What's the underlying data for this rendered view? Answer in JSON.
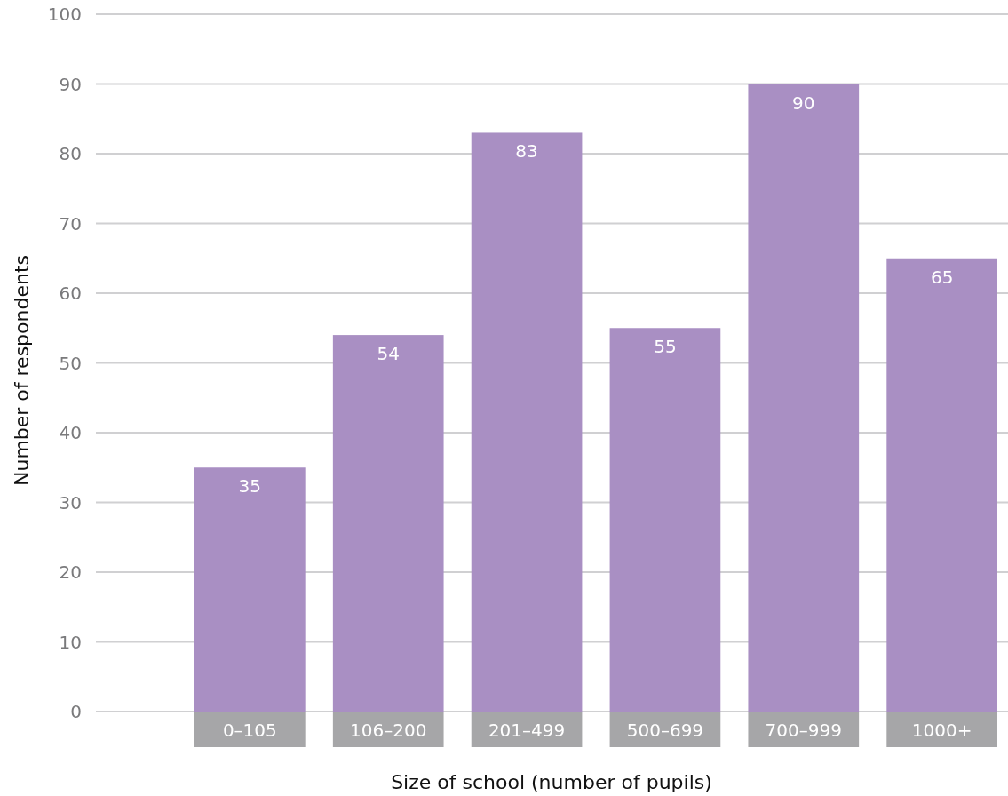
{
  "chart_data": {
    "type": "bar",
    "xlabel": "Size of school (number of pupils)",
    "ylabel": "Number of respondents",
    "categories": [
      "0–105",
      "106–200",
      "201–499",
      "500–699",
      "700–999",
      "1000+"
    ],
    "values": [
      35,
      54,
      83,
      55,
      90,
      65
    ],
    "color": "#a98fc3",
    "ylim": [
      0,
      100
    ],
    "yticks": [
      0,
      10,
      20,
      30,
      40,
      50,
      60,
      70,
      80,
      90,
      100
    ],
    "grid": "y",
    "data_labels": true
  }
}
